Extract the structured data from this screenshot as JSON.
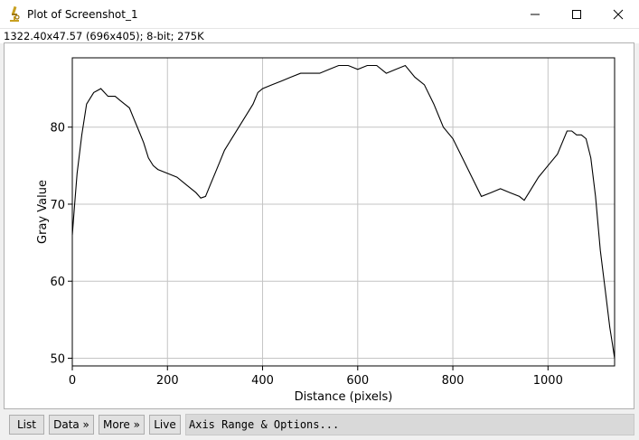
{
  "window": {
    "title": "Plot of Screenshot_1",
    "icon": "microscope-icon",
    "controls": [
      "minimize-icon",
      "maximize-icon",
      "close-icon"
    ]
  },
  "info": {
    "text": "1322.40x47.57   (696x405); 8-bit; 275K"
  },
  "buttons": {
    "list": "List",
    "data": "Data »",
    "more": "More »",
    "live": "Live",
    "axis_range": "Axis Range & Options..."
  },
  "chart_data": {
    "type": "line",
    "xlabel": "Distance (pixels)",
    "ylabel": "Gray Value",
    "xlim": [
      0,
      1140
    ],
    "ylim": [
      49,
      89
    ],
    "xticks": [
      0,
      200,
      400,
      600,
      800,
      1000
    ],
    "yticks": [
      50,
      60,
      70,
      80
    ],
    "grid": true,
    "series": [
      {
        "color": "#000000",
        "x": [
          0,
          5,
          10,
          20,
          30,
          45,
          60,
          75,
          90,
          100,
          110,
          120,
          130,
          140,
          150,
          160,
          170,
          180,
          200,
          220,
          240,
          260,
          270,
          280,
          290,
          300,
          310,
          320,
          340,
          360,
          380,
          390,
          400,
          420,
          440,
          460,
          480,
          500,
          520,
          540,
          560,
          580,
          600,
          620,
          640,
          660,
          680,
          700,
          720,
          740,
          760,
          780,
          800,
          820,
          840,
          860,
          880,
          900,
          920,
          940,
          950,
          960,
          980,
          1000,
          1020,
          1030,
          1040,
          1050,
          1060,
          1070,
          1080,
          1090,
          1100,
          1110,
          1120,
          1130,
          1135,
          1140
        ],
        "y": [
          66,
          70,
          74,
          79,
          83,
          84.5,
          85,
          84,
          84,
          83.5,
          83,
          82.5,
          81,
          79.5,
          78,
          76,
          75,
          74.5,
          74,
          73.5,
          72.5,
          71.5,
          70.8,
          71,
          72.5,
          74,
          75.5,
          77,
          79,
          81,
          83,
          84.5,
          85,
          85.5,
          86,
          86.5,
          87,
          87,
          87,
          87.5,
          88,
          88,
          87.5,
          88,
          88,
          87,
          87.5,
          88,
          86.5,
          85.5,
          83,
          80,
          78.5,
          76,
          73.5,
          71,
          71.5,
          72,
          71.5,
          71,
          70.5,
          71.5,
          73.5,
          75,
          76.5,
          78,
          79.5,
          79.5,
          79,
          79,
          78.5,
          76,
          71,
          64,
          59,
          54,
          52,
          50
        ]
      }
    ]
  }
}
